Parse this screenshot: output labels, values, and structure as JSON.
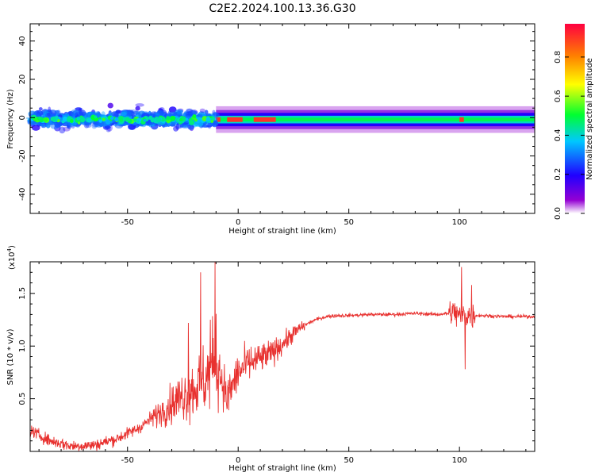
{
  "title": "C2E2.2024.100.13.36.G30",
  "chart_data": [
    {
      "type": "heatmap",
      "xlabel": "Height of straight line (km)",
      "ylabel": "Frequency (Hz)",
      "xlim": [
        -94,
        134
      ],
      "ylim": [
        -50,
        49
      ],
      "xticks": [
        -50,
        0,
        50,
        100
      ],
      "yticks": [
        -40,
        -20,
        0,
        20,
        40
      ],
      "colorbar": {
        "label": "Normalized spectral amplitude",
        "range": [
          0.0,
          0.97
        ],
        "ticks": [
          "0.0",
          "0.2",
          "0.4",
          "0.6",
          "0.8"
        ],
        "colors": [
          "#ffffff",
          "#9400d3",
          "#2000ff",
          "#00c8ff",
          "#00ff30",
          "#ffff00",
          "#ff8000",
          "#ff0040"
        ]
      },
      "band": {
        "centre_hz": -1,
        "noisy_region_km": [
          -94,
          -10
        ],
        "stable_region_km": [
          -10,
          134
        ],
        "peak_segments_km": [
          [
            -10,
            -8
          ],
          [
            -5,
            2
          ],
          [
            7,
            17
          ],
          [
            100,
            102
          ]
        ]
      }
    },
    {
      "type": "line",
      "xlabel": "Height of straight line (km)",
      "ylabel": "SNR (10 * v/v)",
      "y_multiplier": "(x10",
      "y_multiplier_exp": "4",
      "y_multiplier_close": ")",
      "xlim": [
        -94,
        134
      ],
      "ylim": [
        0,
        1.8
      ],
      "xticks": [
        -50,
        0,
        50,
        100
      ],
      "yticks": [
        0.5,
        1.0,
        1.5
      ],
      "ytick_labels": [
        "0.5",
        "1.0",
        "1.5"
      ],
      "series": [
        {
          "color": "#e8312f",
          "x": [
            -94,
            -85,
            -75,
            -65,
            -55,
            -45,
            -38,
            -30,
            -25,
            -20,
            -15,
            -12,
            -10,
            -5,
            0,
            5,
            10,
            15,
            20,
            25,
            30,
            35,
            40,
            45,
            50,
            60,
            70,
            80,
            90,
            95,
            98,
            100,
            102,
            105,
            110,
            120,
            134
          ],
          "y": [
            0.2,
            0.1,
            0.05,
            0.06,
            0.12,
            0.22,
            0.33,
            0.45,
            0.53,
            0.6,
            0.68,
            0.8,
            0.9,
            0.5,
            0.75,
            0.84,
            0.88,
            0.93,
            1.02,
            1.12,
            1.2,
            1.25,
            1.28,
            1.29,
            1.29,
            1.3,
            1.3,
            1.31,
            1.3,
            1.31,
            1.32,
            1.28,
            1.3,
            1.29,
            1.29,
            1.28,
            1.28
          ],
          "spikes": [
            {
              "x": -22.5,
              "y": 1.22
            },
            {
              "x": -17,
              "y": 1.7
            },
            {
              "x": -10.5,
              "y": 1.8
            },
            {
              "x": -12.5,
              "y": 1.25
            },
            {
              "x": 101,
              "y": 1.75
            },
            {
              "x": 102.5,
              "y": 0.78
            },
            {
              "x": 105.5,
              "y": 1.58
            }
          ]
        }
      ]
    }
  ]
}
